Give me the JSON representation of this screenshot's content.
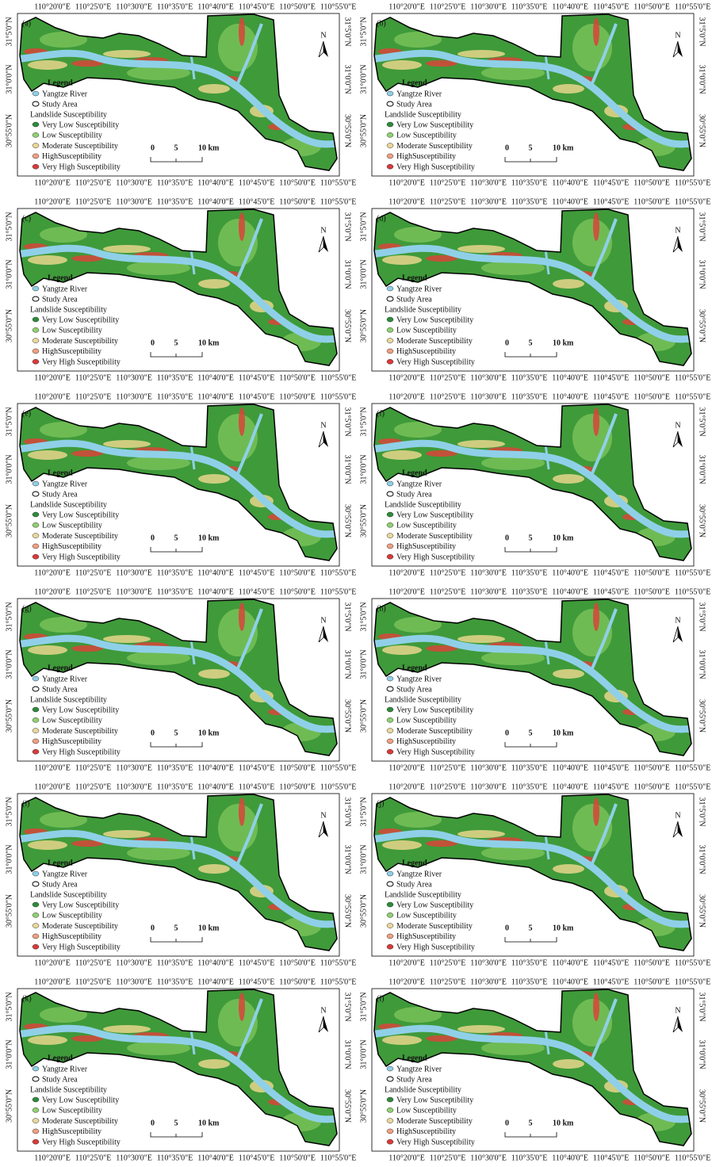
{
  "panel_labels": [
    "(a)",
    "(b)",
    "(c)",
    "(d)",
    "(e)",
    "(f)",
    "(g)",
    "(h)",
    "(i)",
    "(j)",
    "(k)",
    "(l)"
  ],
  "lon_labels": [
    "110°20'0\"E",
    "110°25'0\"E",
    "110°30'0\"E",
    "110°35'0\"E",
    "110°40'0\"E",
    "110°45'0\"E",
    "110°50'0\"E",
    "110°55'0\"E"
  ],
  "lat_labels": [
    "31°5'0\"N",
    "31°0'0\"N",
    "30°55'0\"N"
  ],
  "legend": {
    "title": "Legend",
    "river": "Yangtze River",
    "study_area": "Study Area",
    "heading": "Landslide Susceptibility",
    "classes": [
      "Very Low Susceptibility",
      "Low Susceptibility",
      "Moderate Susceptibility",
      "HighSusceptibility",
      "Very High Susceptibility"
    ]
  },
  "scale_bar": [
    "0",
    "5",
    "10 km"
  ],
  "north": "N"
}
